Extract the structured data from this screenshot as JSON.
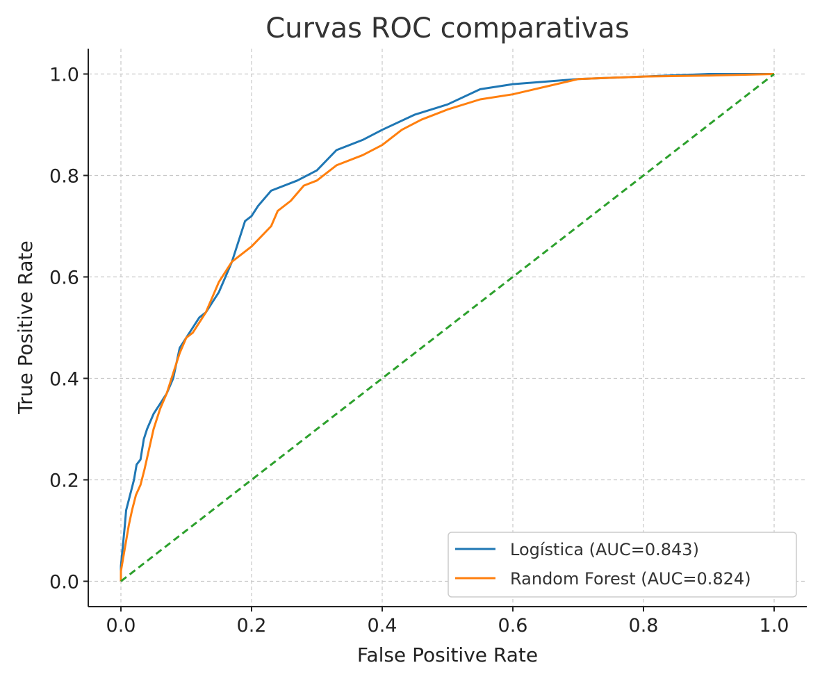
{
  "chart_data": {
    "type": "line",
    "title": "Curvas ROC comparativas",
    "xlabel": "False Positive Rate",
    "ylabel": "True Positive Rate",
    "xlim": [
      -0.05,
      1.05
    ],
    "ylim": [
      -0.05,
      1.05
    ],
    "xticks": [
      0.0,
      0.2,
      0.4,
      0.6,
      0.8,
      1.0
    ],
    "yticks": [
      0.0,
      0.2,
      0.4,
      0.6,
      0.8,
      1.0
    ],
    "xtick_labels": [
      "0.0",
      "0.2",
      "0.4",
      "0.6",
      "0.8",
      "1.0"
    ],
    "ytick_labels": [
      "0.0",
      "0.2",
      "0.4",
      "0.6",
      "0.8",
      "1.0"
    ],
    "grid": true,
    "legend_position": "bottom-right",
    "series": [
      {
        "name": "Logística (AUC=0.843)",
        "color": "#1f77b4",
        "dash": false,
        "points": [
          [
            0.0,
            0.0
          ],
          [
            0.0,
            0.03
          ],
          [
            0.003,
            0.07
          ],
          [
            0.006,
            0.11
          ],
          [
            0.008,
            0.14
          ],
          [
            0.012,
            0.16
          ],
          [
            0.016,
            0.18
          ],
          [
            0.02,
            0.2
          ],
          [
            0.024,
            0.23
          ],
          [
            0.03,
            0.24
          ],
          [
            0.035,
            0.28
          ],
          [
            0.04,
            0.3
          ],
          [
            0.05,
            0.33
          ],
          [
            0.06,
            0.35
          ],
          [
            0.07,
            0.37
          ],
          [
            0.08,
            0.4
          ],
          [
            0.085,
            0.43
          ],
          [
            0.09,
            0.46
          ],
          [
            0.1,
            0.48
          ],
          [
            0.11,
            0.5
          ],
          [
            0.12,
            0.52
          ],
          [
            0.13,
            0.53
          ],
          [
            0.14,
            0.55
          ],
          [
            0.15,
            0.57
          ],
          [
            0.16,
            0.6
          ],
          [
            0.17,
            0.63
          ],
          [
            0.18,
            0.67
          ],
          [
            0.19,
            0.71
          ],
          [
            0.2,
            0.72
          ],
          [
            0.21,
            0.74
          ],
          [
            0.23,
            0.77
          ],
          [
            0.27,
            0.79
          ],
          [
            0.3,
            0.81
          ],
          [
            0.33,
            0.85
          ],
          [
            0.37,
            0.87
          ],
          [
            0.4,
            0.89
          ],
          [
            0.45,
            0.92
          ],
          [
            0.5,
            0.94
          ],
          [
            0.55,
            0.97
          ],
          [
            0.6,
            0.98
          ],
          [
            0.7,
            0.99
          ],
          [
            0.8,
            0.995
          ],
          [
            0.9,
            1.0
          ],
          [
            1.0,
            1.0
          ]
        ]
      },
      {
        "name": "Random Forest (AUC=0.824)",
        "color": "#ff7f0e",
        "dash": false,
        "points": [
          [
            0.0,
            0.0
          ],
          [
            0.0,
            0.02
          ],
          [
            0.004,
            0.05
          ],
          [
            0.008,
            0.08
          ],
          [
            0.012,
            0.11
          ],
          [
            0.017,
            0.14
          ],
          [
            0.023,
            0.17
          ],
          [
            0.03,
            0.19
          ],
          [
            0.036,
            0.22
          ],
          [
            0.043,
            0.26
          ],
          [
            0.05,
            0.3
          ],
          [
            0.06,
            0.34
          ],
          [
            0.07,
            0.37
          ],
          [
            0.08,
            0.41
          ],
          [
            0.09,
            0.45
          ],
          [
            0.1,
            0.48
          ],
          [
            0.11,
            0.49
          ],
          [
            0.12,
            0.51
          ],
          [
            0.13,
            0.53
          ],
          [
            0.14,
            0.56
          ],
          [
            0.15,
            0.59
          ],
          [
            0.16,
            0.61
          ],
          [
            0.17,
            0.63
          ],
          [
            0.18,
            0.64
          ],
          [
            0.2,
            0.66
          ],
          [
            0.23,
            0.7
          ],
          [
            0.24,
            0.73
          ],
          [
            0.26,
            0.75
          ],
          [
            0.28,
            0.78
          ],
          [
            0.3,
            0.79
          ],
          [
            0.33,
            0.82
          ],
          [
            0.37,
            0.84
          ],
          [
            0.4,
            0.86
          ],
          [
            0.43,
            0.89
          ],
          [
            0.46,
            0.91
          ],
          [
            0.5,
            0.93
          ],
          [
            0.55,
            0.95
          ],
          [
            0.6,
            0.96
          ],
          [
            0.65,
            0.975
          ],
          [
            0.7,
            0.99
          ],
          [
            0.8,
            0.995
          ],
          [
            0.9,
            0.997
          ],
          [
            1.0,
            1.0
          ]
        ]
      },
      {
        "name": "",
        "color": "#2ca02c",
        "dash": true,
        "points": [
          [
            0.0,
            0.0
          ],
          [
            1.0,
            1.0
          ]
        ]
      }
    ]
  }
}
